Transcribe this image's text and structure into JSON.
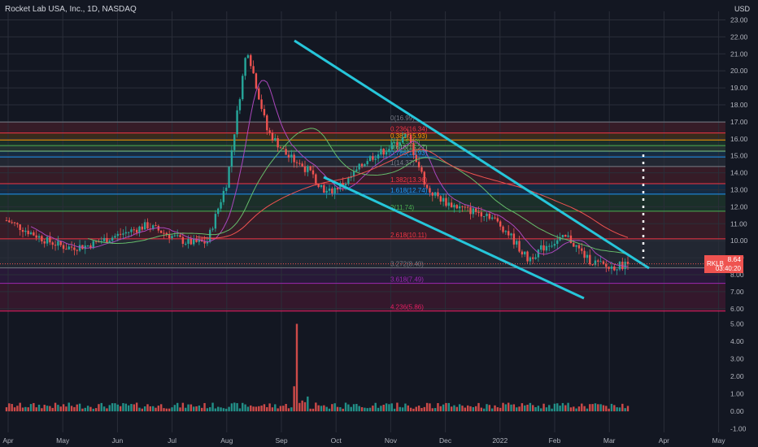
{
  "header": {
    "title": "Rocket Lab USA, Inc., 1D, NASDAQ",
    "currency": "USD"
  },
  "price_badge": {
    "symbol": "RKLB",
    "price": "8.64",
    "timer": "03:40:20"
  },
  "colors": {
    "background": "#131722",
    "up": "#26a69a",
    "down": "#ef5350",
    "trendline": "#26c6da",
    "ma_slow": "#ef5350",
    "ma_fast": "#ab47bc",
    "ma_mid": "#66bb6a"
  },
  "chart_data": {
    "type": "candlestick",
    "title": "Rocket Lab USA, Inc., 1D, NASDAQ",
    "y_axis": {
      "label": "USD",
      "ticks": [
        "23.00",
        "22.00",
        "21.00",
        "20.00",
        "19.00",
        "18.00",
        "17.00",
        "16.00",
        "15.00",
        "14.00",
        "13.00",
        "12.00",
        "11.00",
        "10.00",
        "9.00",
        "8.00",
        "7.00",
        "6.00"
      ],
      "range": [
        5.8,
        23.5
      ]
    },
    "volume_axis": {
      "ticks": [
        "5.00",
        "4.00",
        "3.00",
        "2.00",
        "1.00",
        "0.00",
        "-1.00"
      ],
      "range": [
        -1.2,
        5.3
      ]
    },
    "x_axis": {
      "ticks": [
        "Apr",
        "May",
        "Jun",
        "Jul",
        "Aug",
        "Sep",
        "Oct",
        "Nov",
        "Dec",
        "2022",
        "Feb",
        "Mar",
        "Apr",
        "May"
      ]
    },
    "approx_close_path": [
      {
        "t": "Apr",
        "close": 11.2
      },
      {
        "t": "Apr-mid",
        "close": 10.6
      },
      {
        "t": "May",
        "close": 10.0
      },
      {
        "t": "May-mid",
        "close": 9.6
      },
      {
        "t": "Jun",
        "close": 9.7
      },
      {
        "t": "Jun-mid",
        "close": 10.1
      },
      {
        "t": "Jul",
        "close": 10.5
      },
      {
        "t": "Jul-mid",
        "close": 10.9
      },
      {
        "t": "Aug",
        "close": 10.4
      },
      {
        "t": "Aug-mid",
        "close": 9.9
      },
      {
        "t": "Aug-end",
        "close": 9.9
      },
      {
        "t": "Sep-start",
        "close": 13.5
      },
      {
        "t": "Sep-peak",
        "close": 21.4
      },
      {
        "t": "Sep-mid",
        "close": 16.5
      },
      {
        "t": "Sep-end",
        "close": 15.0
      },
      {
        "t": "Oct-mid",
        "close": 14.2
      },
      {
        "t": "Oct-end",
        "close": 12.8
      },
      {
        "t": "Nov",
        "close": 13.5
      },
      {
        "t": "Nov-mid",
        "close": 14.8
      },
      {
        "t": "Nov-end",
        "close": 15.4
      },
      {
        "t": "Dec-start",
        "close": 16.2
      },
      {
        "t": "Dec",
        "close": 13.0
      },
      {
        "t": "Dec-mid",
        "close": 12.2
      },
      {
        "t": "Dec-end",
        "close": 11.8
      },
      {
        "t": "2022",
        "close": 11.6
      },
      {
        "t": "Jan-mid",
        "close": 10.5
      },
      {
        "t": "Jan-end",
        "close": 8.9
      },
      {
        "t": "Feb",
        "close": 9.8
      },
      {
        "t": "Feb-mid",
        "close": 10.2
      },
      {
        "t": "Feb-end",
        "close": 8.9
      },
      {
        "t": "Mar",
        "close": 8.4
      },
      {
        "t": "Mar-mid",
        "close": 8.64
      }
    ],
    "fib_levels": [
      {
        "label": "0(16.99)",
        "value": 16.99,
        "color": "#787b86"
      },
      {
        "label": "0.236(16.34)",
        "value": 16.34,
        "color": "#f23645"
      },
      {
        "label": "0.382(15.93)",
        "value": 15.93,
        "color": "#ff9800"
      },
      {
        "label": "0.5(15.60)",
        "value": 15.6,
        "color": "#4caf50"
      },
      {
        "label": "0.618(15.27)",
        "value": 15.27,
        "color": "#81c784"
      },
      {
        "label": "0.786(14.93)",
        "value": 14.93,
        "color": "#2196f3"
      },
      {
        "label": "1(14.37)",
        "value": 14.37,
        "color": "#787b86"
      },
      {
        "label": "1.382(13.36)",
        "value": 13.36,
        "color": "#f23645"
      },
      {
        "label": "1.618(12.74)",
        "value": 12.74,
        "color": "#2196f3"
      },
      {
        "label": "2(11.74)",
        "value": 11.74,
        "color": "#4caf50"
      },
      {
        "label": "2.618(10.11)",
        "value": 10.11,
        "color": "#f23645"
      },
      {
        "label": "3.272(8.40)",
        "value": 8.4,
        "color": "#787b86"
      },
      {
        "label": "3.618(7.49)",
        "value": 7.49,
        "color": "#9c27b0"
      },
      {
        "label": "4.236(5.86)",
        "value": 5.86,
        "color": "#e91e63"
      }
    ],
    "last_price": 8.64,
    "volume_peak": 5.0
  }
}
